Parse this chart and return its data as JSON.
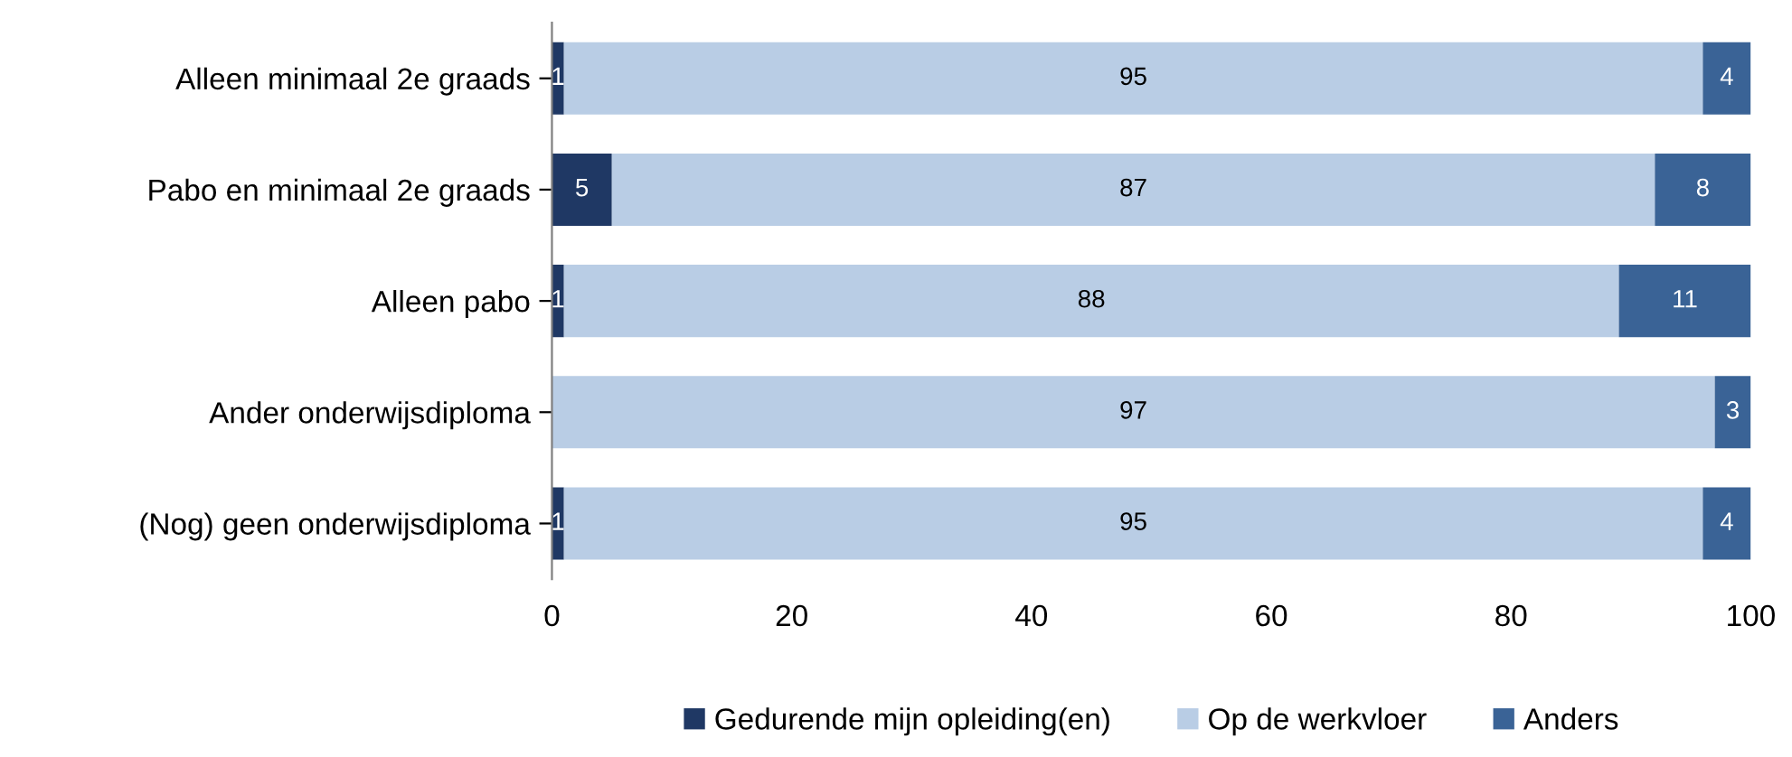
{
  "chart_data": {
    "type": "bar",
    "orientation": "horizontal",
    "stacked": true,
    "categories": [
      "Alleen minimaal 2e graads",
      "Pabo en minimaal 2e graads",
      "Alleen pabo",
      "Ander onderwijsdiploma",
      "(Nog) geen onderwijsdiploma"
    ],
    "series": [
      {
        "name": "Gedurende mijn opleiding(en)",
        "color": "#1f3864",
        "values": [
          1,
          5,
          1,
          null,
          1
        ]
      },
      {
        "name": "Op de werkvloer",
        "color": "#b9cde5",
        "values": [
          95,
          87,
          88,
          97,
          95
        ]
      },
      {
        "name": "Anders",
        "color": "#3a6396",
        "values": [
          4,
          8,
          11,
          3,
          4
        ]
      }
    ],
    "xlim": [
      0,
      100
    ],
    "xticks": [
      0,
      20,
      40,
      60,
      80,
      100
    ],
    "data_labels": true,
    "grid": false,
    "legend": "bottom"
  }
}
